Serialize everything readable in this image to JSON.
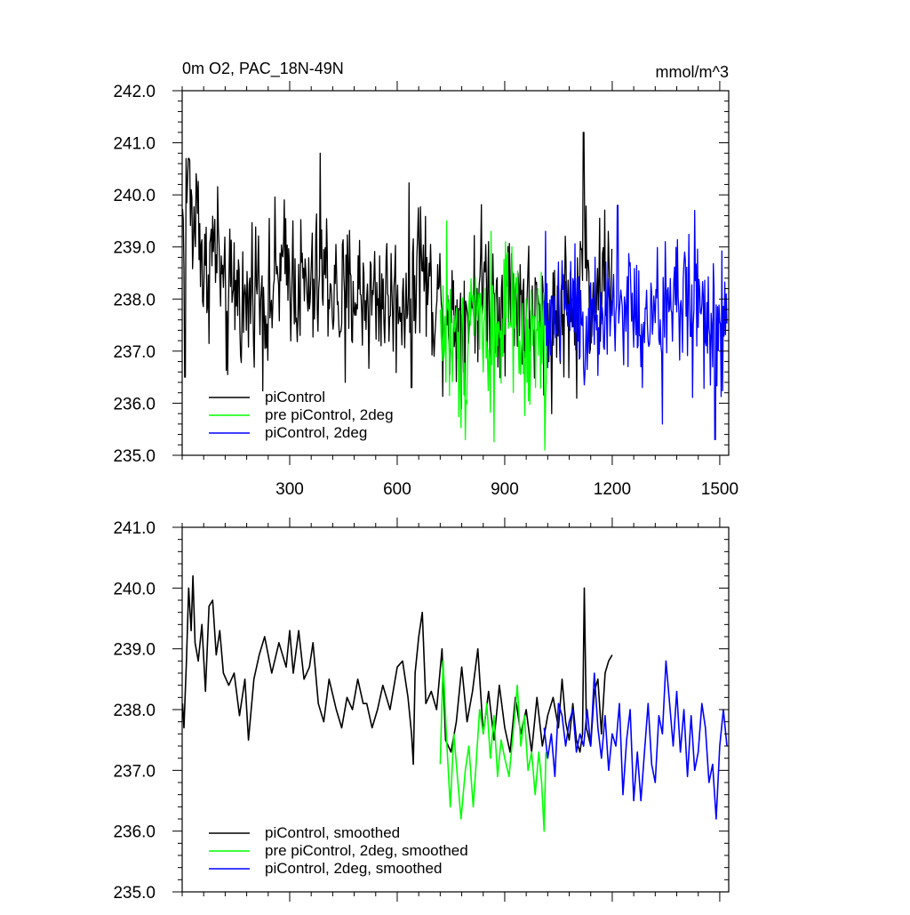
{
  "figure": {
    "title_left": "0m O2, PAC_18N-49N",
    "title_right": "mmol/m^3"
  },
  "chart_data": [
    {
      "type": "line",
      "panel": "top",
      "xlim": [
        0,
        1525
      ],
      "ylim": [
        235.0,
        242.0
      ],
      "x_ticks": [
        300,
        600,
        900,
        1200,
        1500
      ],
      "y_ticks": [
        "235.0",
        "236.0",
        "237.0",
        "238.0",
        "239.0",
        "240.0",
        "241.0",
        "242.0"
      ],
      "grid": false,
      "legend_position": "bottom-left",
      "series": [
        {
          "name": "piControl",
          "color": "#000000",
          "x_range": [
            1,
            1200
          ],
          "points": [
            [
              1,
              239.5
            ],
            [
              15,
              240.3
            ],
            [
              30,
              239.2
            ],
            [
              45,
              240.0
            ],
            [
              60,
              238.2
            ],
            [
              80,
              238.9
            ],
            [
              100,
              239.0
            ],
            [
              120,
              237.6
            ],
            [
              150,
              238.3
            ],
            [
              180,
              237.7
            ],
            [
              200,
              238.5
            ],
            [
              240,
              237.8
            ],
            [
              260,
              238.4
            ],
            [
              300,
              238.6
            ],
            [
              320,
              238.3
            ],
            [
              360,
              238.1
            ],
            [
              400,
              238.5
            ],
            [
              440,
              237.9
            ],
            [
              480,
              238.2
            ],
            [
              520,
              238.0
            ],
            [
              560,
              238.1
            ],
            [
              600,
              237.9
            ],
            [
              630,
              238.2
            ],
            [
              650,
              238.6
            ],
            [
              665,
              238.9
            ],
            [
              690,
              238.1
            ],
            [
              720,
              238.0
            ],
            [
              760,
              237.6
            ],
            [
              800,
              237.8
            ],
            [
              840,
              238.4
            ],
            [
              880,
              237.9
            ],
            [
              920,
              238.2
            ],
            [
              960,
              237.8
            ],
            [
              1000,
              237.5
            ],
            [
              1040,
              237.6
            ],
            [
              1080,
              238.0
            ],
            [
              1100,
              237.3
            ],
            [
              1120,
              239.3
            ],
            [
              1140,
              238.0
            ],
            [
              1170,
              238.3
            ],
            [
              1200,
              238.6
            ]
          ],
          "extremes": [
            [
              18,
              240.7
            ],
            [
              8,
              236.5
            ],
            [
              385,
              240.8
            ],
            [
              1120,
              241.2
            ],
            [
              455,
              236.4
            ],
            [
              785,
              236.6
            ],
            [
              640,
              236.3
            ]
          ]
        },
        {
          "name": "pre piControl, 2deg",
          "color": "#00ff00",
          "x_range": [
            720,
            1020
          ],
          "points": [
            [
              720,
              237.5
            ],
            [
              750,
              237.2
            ],
            [
              780,
              236.8
            ],
            [
              810,
              238.2
            ],
            [
              840,
              237.4
            ],
            [
              870,
              237.0
            ],
            [
              900,
              237.9
            ],
            [
              930,
              237.2
            ],
            [
              960,
              236.8
            ],
            [
              990,
              237.3
            ],
            [
              1020,
              237.1
            ]
          ],
          "extremes": [
            [
              738,
              239.5
            ],
            [
              790,
              235.3
            ],
            [
              1012,
              235.1
            ],
            [
              862,
              239.3
            ]
          ]
        },
        {
          "name": "piControl, 2deg",
          "color": "#0000ff",
          "x_range": [
            1010,
            1520
          ],
          "points": [
            [
              1010,
              237.6
            ],
            [
              1050,
              237.8
            ],
            [
              1090,
              238.2
            ],
            [
              1130,
              237.4
            ],
            [
              1170,
              237.6
            ],
            [
              1210,
              237.8
            ],
            [
              1250,
              237.9
            ],
            [
              1290,
              237.3
            ],
            [
              1330,
              237.7
            ],
            [
              1370,
              238.0
            ],
            [
              1410,
              238.0
            ],
            [
              1450,
              237.8
            ],
            [
              1490,
              237.2
            ],
            [
              1520,
              237.6
            ]
          ],
          "extremes": [
            [
              1215,
              239.8
            ],
            [
              1340,
              235.6
            ],
            [
              1487,
              235.3
            ],
            [
              1430,
              239.7
            ]
          ]
        }
      ]
    },
    {
      "type": "line",
      "panel": "bottom",
      "xlim": [
        0,
        1525
      ],
      "ylim": [
        235.0,
        241.0
      ],
      "x_ticks": [
        300,
        600,
        900,
        1200,
        1500
      ],
      "y_ticks": [
        "235.0",
        "236.0",
        "237.0",
        "238.0",
        "239.0",
        "240.0",
        "241.0"
      ],
      "grid": false,
      "legend_position": "bottom-left",
      "series": [
        {
          "name": "piControl, smoothed",
          "color": "#000000",
          "points": [
            [
              1,
              238.1
            ],
            [
              5,
              237.7
            ],
            [
              12,
              238.8
            ],
            [
              18,
              240.0
            ],
            [
              25,
              239.3
            ],
            [
              30,
              240.2
            ],
            [
              36,
              239.1
            ],
            [
              45,
              238.8
            ],
            [
              55,
              239.4
            ],
            [
              65,
              238.3
            ],
            [
              75,
              239.7
            ],
            [
              85,
              239.8
            ],
            [
              95,
              238.9
            ],
            [
              105,
              239.3
            ],
            [
              115,
              238.6
            ],
            [
              130,
              238.4
            ],
            [
              145,
              238.6
            ],
            [
              160,
              237.9
            ],
            [
              175,
              238.5
            ],
            [
              185,
              237.5
            ],
            [
              200,
              238.5
            ],
            [
              215,
              238.9
            ],
            [
              230,
              239.2
            ],
            [
              250,
              238.6
            ],
            [
              270,
              239.1
            ],
            [
              290,
              238.7
            ],
            [
              300,
              239.3
            ],
            [
              310,
              238.6
            ],
            [
              325,
              239.3
            ],
            [
              340,
              238.5
            ],
            [
              355,
              238.7
            ],
            [
              365,
              239.1
            ],
            [
              380,
              238.1
            ],
            [
              395,
              237.8
            ],
            [
              410,
              238.5
            ],
            [
              430,
              238.0
            ],
            [
              445,
              237.7
            ],
            [
              460,
              238.2
            ],
            [
              475,
              238.0
            ],
            [
              490,
              238.5
            ],
            [
              505,
              238.1
            ],
            [
              515,
              238.1
            ],
            [
              530,
              237.7
            ],
            [
              545,
              238.0
            ],
            [
              560,
              238.4
            ],
            [
              580,
              238.0
            ],
            [
              600,
              238.7
            ],
            [
              615,
              238.8
            ],
            [
              630,
              238.2
            ],
            [
              640,
              237.6
            ],
            [
              645,
              237.1
            ],
            [
              650,
              238.6
            ],
            [
              660,
              239.2
            ],
            [
              670,
              239.6
            ],
            [
              680,
              238.1
            ],
            [
              695,
              238.3
            ],
            [
              710,
              238.0
            ],
            [
              725,
              239.0
            ],
            [
              735,
              237.5
            ],
            [
              750,
              237.3
            ],
            [
              765,
              237.8
            ],
            [
              780,
              238.7
            ],
            [
              795,
              237.8
            ],
            [
              810,
              238.3
            ],
            [
              825,
              239.0
            ],
            [
              840,
              237.6
            ],
            [
              855,
              238.3
            ],
            [
              870,
              237.5
            ],
            [
              885,
              238.4
            ],
            [
              900,
              237.7
            ],
            [
              915,
              237.3
            ],
            [
              930,
              238.2
            ],
            [
              945,
              237.6
            ],
            [
              960,
              238.0
            ],
            [
              975,
              237.3
            ],
            [
              990,
              238.2
            ],
            [
              1005,
              237.4
            ],
            [
              1020,
              237.9
            ],
            [
              1035,
              238.2
            ],
            [
              1050,
              237.7
            ],
            [
              1060,
              238.5
            ],
            [
              1070,
              237.8
            ],
            [
              1080,
              237.5
            ],
            [
              1090,
              238.1
            ],
            [
              1100,
              237.5
            ],
            [
              1110,
              237.3
            ],
            [
              1117,
              237.6
            ],
            [
              1122,
              240.0
            ],
            [
              1128,
              237.7
            ],
            [
              1140,
              237.4
            ],
            [
              1150,
              238.3
            ],
            [
              1160,
              238.5
            ],
            [
              1170,
              237.6
            ],
            [
              1180,
              238.6
            ],
            [
              1190,
              238.8
            ],
            [
              1200,
              238.9
            ]
          ]
        },
        {
          "name": "pre piControl, 2deg, smoothed",
          "color": "#00ff00",
          "points": [
            [
              720,
              237.1
            ],
            [
              728,
              238.8
            ],
            [
              738,
              237.5
            ],
            [
              748,
              236.4
            ],
            [
              758,
              237.6
            ],
            [
              768,
              236.9
            ],
            [
              778,
              236.2
            ],
            [
              790,
              237.0
            ],
            [
              800,
              237.4
            ],
            [
              812,
              236.4
            ],
            [
              820,
              237.1
            ],
            [
              830,
              238.0
            ],
            [
              840,
              237.6
            ],
            [
              850,
              238.1
            ],
            [
              860,
              237.2
            ],
            [
              870,
              237.9
            ],
            [
              880,
              236.9
            ],
            [
              890,
              237.5
            ],
            [
              900,
              237.2
            ],
            [
              912,
              236.9
            ],
            [
              925,
              237.7
            ],
            [
              935,
              238.4
            ],
            [
              945,
              237.4
            ],
            [
              955,
              237.9
            ],
            [
              965,
              237.0
            ],
            [
              975,
              237.3
            ],
            [
              985,
              236.6
            ],
            [
              995,
              237.3
            ],
            [
              1003,
              236.8
            ],
            [
              1010,
              236.0
            ],
            [
              1015,
              237.3
            ]
          ]
        },
        {
          "name": "piControl, 2deg, smoothed",
          "color": "#0000ff",
          "points": [
            [
              1010,
              237.7
            ],
            [
              1020,
              237.2
            ],
            [
              1030,
              237.6
            ],
            [
              1040,
              236.9
            ],
            [
              1050,
              238.1
            ],
            [
              1060,
              237.9
            ],
            [
              1070,
              237.4
            ],
            [
              1080,
              237.8
            ],
            [
              1090,
              238.0
            ],
            [
              1100,
              237.3
            ],
            [
              1110,
              237.6
            ],
            [
              1120,
              237.4
            ],
            [
              1130,
              238.0
            ],
            [
              1140,
              237.4
            ],
            [
              1150,
              238.6
            ],
            [
              1160,
              237.7
            ],
            [
              1170,
              237.2
            ],
            [
              1180,
              237.9
            ],
            [
              1190,
              237.0
            ],
            [
              1200,
              237.6
            ],
            [
              1210,
              237.4
            ],
            [
              1220,
              238.1
            ],
            [
              1230,
              236.6
            ],
            [
              1240,
              237.5
            ],
            [
              1250,
              238.0
            ],
            [
              1260,
              236.5
            ],
            [
              1270,
              237.3
            ],
            [
              1280,
              236.5
            ],
            [
              1290,
              237.3
            ],
            [
              1300,
              238.1
            ],
            [
              1310,
              237.1
            ],
            [
              1320,
              236.8
            ],
            [
              1330,
              237.9
            ],
            [
              1340,
              237.6
            ],
            [
              1350,
              238.8
            ],
            [
              1360,
              238.1
            ],
            [
              1370,
              237.4
            ],
            [
              1380,
              238.3
            ],
            [
              1390,
              237.3
            ],
            [
              1400,
              238.0
            ],
            [
              1410,
              236.9
            ],
            [
              1420,
              237.9
            ],
            [
              1430,
              237.0
            ],
            [
              1440,
              237.3
            ],
            [
              1450,
              238.1
            ],
            [
              1460,
              237.7
            ],
            [
              1470,
              236.8
            ],
            [
              1480,
              237.1
            ],
            [
              1490,
              236.2
            ],
            [
              1500,
              237.4
            ],
            [
              1510,
              238.0
            ],
            [
              1520,
              237.4
            ]
          ]
        }
      ]
    }
  ]
}
